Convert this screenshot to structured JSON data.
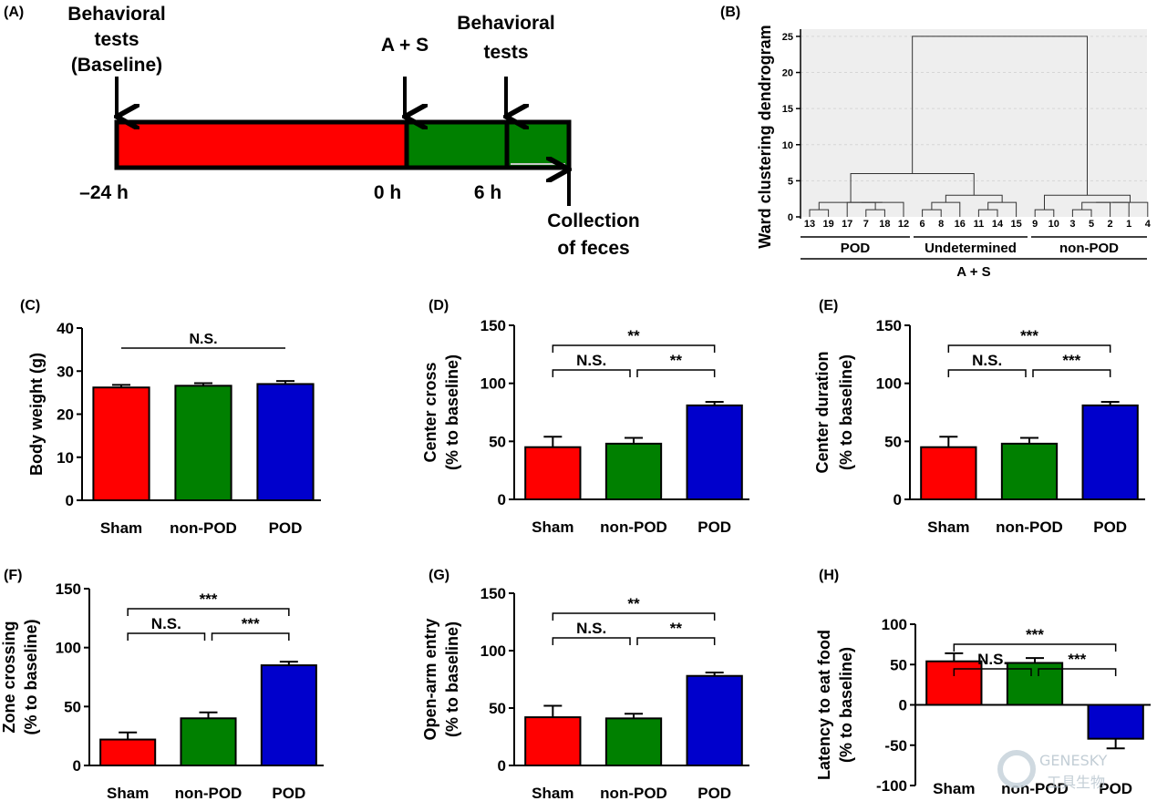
{
  "panel_labels": {
    "A": "(A)",
    "B": "(B)",
    "C": "(C)",
    "D": "(D)",
    "E": "(E)",
    "F": "(F)",
    "G": "(G)",
    "H": "(H)"
  },
  "timeline": {
    "labels": {
      "behavioral_baseline_1": "Behavioral",
      "behavioral_baseline_2": "tests",
      "behavioral_baseline_3": "(Baseline)",
      "as": "A + S",
      "behavioral_1": "Behavioral",
      "behavioral_2": "tests",
      "collection_1": "Collection",
      "collection_2": "of feces",
      "t_m24": "–24 h",
      "t_0": "0 h",
      "t_6": "6 h"
    },
    "colors": {
      "pre": "#ff0000",
      "post": "#008000"
    }
  },
  "watermark": {
    "line1": "GENESKY",
    "line2": "工具生物"
  },
  "chart_data": [
    {
      "panel": "B",
      "type": "dendrogram",
      "ylabel": "Ward clustering dendrogram",
      "ylim": [
        0,
        26
      ],
      "yticks": [
        0,
        5,
        10,
        15,
        20,
        25
      ],
      "leaves": [
        "13",
        "19",
        "17",
        "7",
        "18",
        "12",
        "6",
        "8",
        "16",
        "11",
        "14",
        "15",
        "9",
        "10",
        "3",
        "5",
        "2",
        "1",
        "4"
      ],
      "merges": [
        {
          "a": "L0",
          "b": "L1",
          "h": 1
        },
        {
          "a": "L3",
          "b": "L4",
          "h": 1
        },
        {
          "a": "L2",
          "b": "M1",
          "h": 2
        },
        {
          "a": "M2",
          "b": "L5",
          "h": 2
        },
        {
          "a": "M0",
          "b": "M3",
          "h": 2
        },
        {
          "a": "L6",
          "b": "L7",
          "h": 1
        },
        {
          "a": "L9",
          "b": "L10",
          "h": 1
        },
        {
          "a": "M6",
          "b": "L11",
          "h": 2
        },
        {
          "a": "M5",
          "b": "L8",
          "h": 2
        },
        {
          "a": "M8",
          "b": "M7",
          "h": 3
        },
        {
          "a": "M4",
          "b": "M9",
          "h": 6
        },
        {
          "a": "L12",
          "b": "L13",
          "h": 1
        },
        {
          "a": "L14",
          "b": "L15",
          "h": 1
        },
        {
          "a": "M12",
          "b": "L16",
          "h": 2
        },
        {
          "a": "M13",
          "b": "L17",
          "h": 2
        },
        {
          "a": "M14",
          "b": "L18",
          "h": 2
        },
        {
          "a": "M11",
          "b": "M15",
          "h": 3
        },
        {
          "a": "M10",
          "b": "M16",
          "h": 25
        }
      ],
      "groups": [
        "POD",
        "Undetermined",
        "non-POD"
      ],
      "super_group": "A + S"
    },
    {
      "panel": "C",
      "type": "bar",
      "ylabel": "Body weight (g)",
      "categories": [
        "Sham",
        "non-POD",
        "POD"
      ],
      "values": [
        26.2,
        26.6,
        27.0
      ],
      "errors": [
        0.6,
        0.6,
        0.7
      ],
      "colors": [
        "#ff0000",
        "#008000",
        "#0000cc"
      ],
      "ylim": [
        0,
        40
      ],
      "yticks": [
        0,
        10,
        20,
        30,
        40
      ],
      "sig": [
        {
          "from": 0,
          "to": 2,
          "label": "N.S.",
          "style": "line"
        }
      ]
    },
    {
      "panel": "D",
      "type": "bar",
      "ylabel": "Center cross",
      "ylabel2": "(% to baseline)",
      "categories": [
        "Sham",
        "non-POD",
        "POD"
      ],
      "values": [
        45,
        48,
        81
      ],
      "errors": [
        9,
        5,
        3
      ],
      "colors": [
        "#ff0000",
        "#008000",
        "#0000cc"
      ],
      "ylim": [
        0,
        150
      ],
      "yticks": [
        0,
        50,
        100,
        150
      ],
      "sig": [
        {
          "from": 0,
          "to": 2,
          "label": "**",
          "level": 1
        },
        {
          "from": 0,
          "to": 1,
          "label": "N.S.",
          "level": 0
        },
        {
          "from": 1,
          "to": 2,
          "label": "**",
          "level": 0
        }
      ]
    },
    {
      "panel": "E",
      "type": "bar",
      "ylabel": "Center duration",
      "ylabel2": "(% to baseline)",
      "categories": [
        "Sham",
        "non-POD",
        "POD"
      ],
      "values": [
        45,
        48,
        81
      ],
      "errors": [
        9,
        5,
        3
      ],
      "colors": [
        "#ff0000",
        "#008000",
        "#0000cc"
      ],
      "ylim": [
        0,
        150
      ],
      "yticks": [
        0,
        50,
        100,
        150
      ],
      "sig": [
        {
          "from": 0,
          "to": 2,
          "label": "***",
          "level": 1
        },
        {
          "from": 0,
          "to": 1,
          "label": "N.S.",
          "level": 0
        },
        {
          "from": 1,
          "to": 2,
          "label": "***",
          "level": 0
        }
      ]
    },
    {
      "panel": "F",
      "type": "bar",
      "ylabel": "Zone crossing",
      "ylabel2": "(% to baseline)",
      "categories": [
        "Sham",
        "non-POD",
        "POD"
      ],
      "values": [
        22,
        40,
        85
      ],
      "errors": [
        6,
        5,
        3
      ],
      "colors": [
        "#ff0000",
        "#008000",
        "#0000cc"
      ],
      "ylim": [
        0,
        150
      ],
      "yticks": [
        0,
        50,
        100,
        150
      ],
      "sig": [
        {
          "from": 0,
          "to": 2,
          "label": "***",
          "level": 1
        },
        {
          "from": 0,
          "to": 1,
          "label": "N.S.",
          "level": 0
        },
        {
          "from": 1,
          "to": 2,
          "label": "***",
          "level": 0
        }
      ]
    },
    {
      "panel": "G",
      "type": "bar",
      "ylabel": "Open-arm entry",
      "ylabel2": "(% to baseline)",
      "categories": [
        "Sham",
        "non-POD",
        "POD"
      ],
      "values": [
        42,
        41,
        78
      ],
      "errors": [
        10,
        4,
        3
      ],
      "colors": [
        "#ff0000",
        "#008000",
        "#0000cc"
      ],
      "ylim": [
        0,
        150
      ],
      "yticks": [
        0,
        50,
        100,
        150
      ],
      "sig": [
        {
          "from": 0,
          "to": 2,
          "label": "**",
          "level": 1
        },
        {
          "from": 0,
          "to": 1,
          "label": "N.S.",
          "level": 0
        },
        {
          "from": 1,
          "to": 2,
          "label": "**",
          "level": 0
        }
      ]
    },
    {
      "panel": "H",
      "type": "bar",
      "ylabel": "Latency to eat food",
      "ylabel2": "(% to baseline)",
      "categories": [
        "Sham",
        "non-POD",
        "POD"
      ],
      "values": [
        54,
        52,
        -42
      ],
      "errors": [
        10,
        6,
        12
      ],
      "colors": [
        "#ff0000",
        "#008000",
        "#0000cc"
      ],
      "ylim": [
        -100,
        100
      ],
      "yticks": [
        -100,
        -50,
        0,
        50,
        100
      ],
      "sig": [
        {
          "from": 0,
          "to": 2,
          "label": "***",
          "level": 1
        },
        {
          "from": 0,
          "to": 1,
          "label": "N.S.",
          "level": 0
        },
        {
          "from": 1,
          "to": 2,
          "label": "***",
          "level": 0
        }
      ]
    }
  ]
}
